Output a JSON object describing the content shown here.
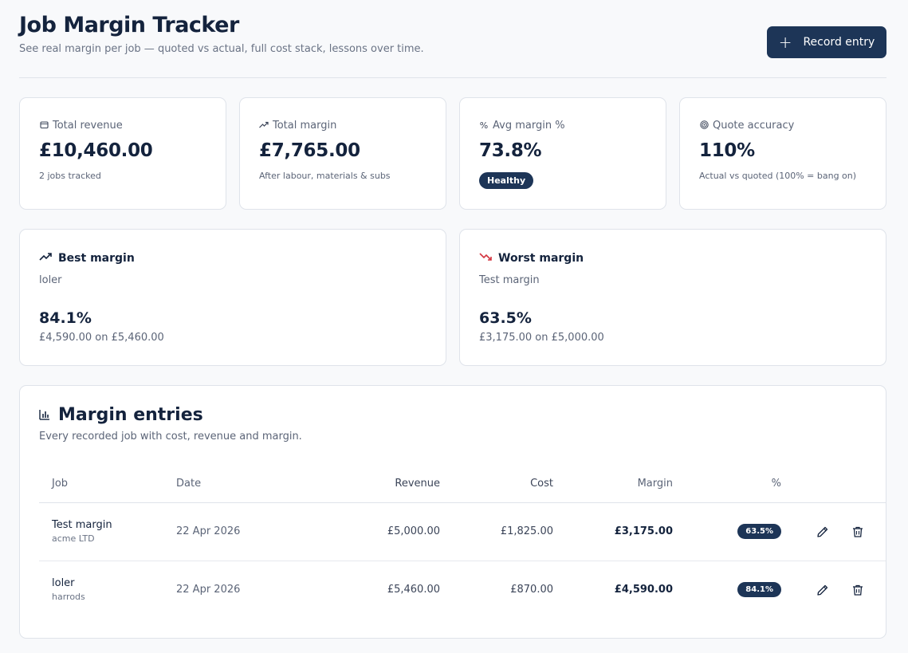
{
  "header": {
    "title": "Job Margin Tracker",
    "subtitle": "See real margin per job — quoted vs actual, full cost stack, lessons over time.",
    "record_button_label": "Record entry",
    "record_button_icon": "plus-icon"
  },
  "stats": {
    "total_revenue": {
      "label": "Total revenue",
      "icon": "wallet-icon",
      "value": "£10,460.00",
      "note": "2 jobs tracked"
    },
    "total_margin": {
      "label": "Total margin",
      "icon": "trending-up-icon",
      "value": "£7,765.00",
      "note": "After labour, materials & subs"
    },
    "avg_margin": {
      "label": "Avg margin %",
      "icon": "percent-icon",
      "value": "73.8%",
      "badge": "Healthy"
    },
    "quote_accuracy": {
      "label": "Quote accuracy",
      "icon": "target-icon",
      "value": "110%",
      "note": "Actual vs quoted (100% = bang on)"
    }
  },
  "best": {
    "title": "Best margin",
    "icon": "trending-up-icon",
    "job": "loler",
    "pct": "84.1%",
    "detail": "£4,590.00 on £5,460.00"
  },
  "worst": {
    "title": "Worst margin",
    "icon": "trending-down-icon",
    "job": "Test margin",
    "pct": "63.5%",
    "detail": "£3,175.00 on £5,000.00"
  },
  "entries": {
    "title": "Margin entries",
    "icon": "bar-chart-icon",
    "subtitle": "Every recorded job with cost, revenue and margin.",
    "columns": {
      "job": "Job",
      "date": "Date",
      "revenue": "Revenue",
      "cost": "Cost",
      "margin": "Margin",
      "pct": "%"
    },
    "rows": [
      {
        "job": "Test margin",
        "client": "acme LTD",
        "date": "22 Apr 2026",
        "revenue": "£5,000.00",
        "cost": "£1,825.00",
        "margin": "£3,175.00",
        "pct": "63.5%"
      },
      {
        "job": "loler",
        "client": "harrods",
        "date": "22 Apr 2026",
        "revenue": "£5,460.00",
        "cost": "£870.00",
        "margin": "£4,590.00",
        "pct": "84.1%"
      }
    ]
  },
  "colors": {
    "accent": "#1d3557",
    "worst_icon": "#d3343f",
    "text": "#14233d",
    "muted": "#5b6477"
  }
}
